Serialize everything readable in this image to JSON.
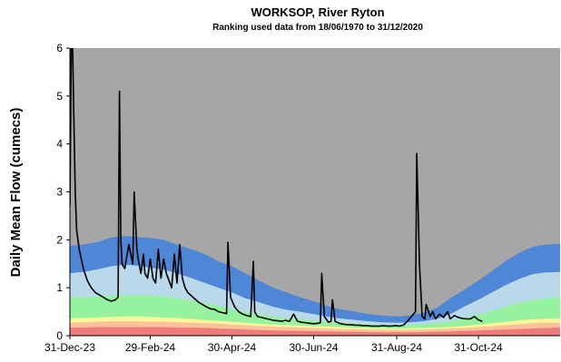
{
  "chart_data": {
    "type": "area",
    "title": "WORKSOP, River Ryton",
    "subtitle": "Ranking used data from 18/06/1970 to 31/12/2020",
    "ylabel": "Daily Mean Flow (cumecs)",
    "xlabel": "",
    "ylim": [
      0,
      6
    ],
    "xlim": [
      "2023-12-31",
      "2024-12-31"
    ],
    "x_ticks": [
      "31-Dec-23",
      "29-Feb-24",
      "30-Apr-24",
      "30-Jun-24",
      "31-Aug-24",
      "31-Oct-24"
    ],
    "y_ticks": [
      "0",
      "1",
      "2",
      "3",
      "4",
      "5",
      "6"
    ],
    "grid": false,
    "colors": {
      "band_top": "#a6a6a6",
      "band_dark_blue": "#4f86d6",
      "band_light_blue": "#b9d9ea",
      "band_green": "#97f29f",
      "band_yellow": "#fdf59a",
      "band_orange": "#f9c29a",
      "band_red": "#ee7a7a",
      "flow_line": "#000000"
    },
    "bands": {
      "x": [
        "2023-12-31",
        "2024-01-10",
        "2024-01-20",
        "2024-01-31",
        "2024-02-10",
        "2024-02-20",
        "2024-02-29",
        "2024-03-10",
        "2024-03-20",
        "2024-03-31",
        "2024-04-10",
        "2024-04-20",
        "2024-04-30",
        "2024-05-10",
        "2024-05-20",
        "2024-05-31",
        "2024-06-10",
        "2024-06-20",
        "2024-06-30",
        "2024-07-10",
        "2024-07-20",
        "2024-07-31",
        "2024-08-10",
        "2024-08-20",
        "2024-08-31",
        "2024-09-10",
        "2024-09-20",
        "2024-09-30",
        "2024-10-10",
        "2024-10-20",
        "2024-10-31",
        "2024-11-10",
        "2024-11-20",
        "2024-11-30",
        "2024-12-10",
        "2024-12-20",
        "2024-12-31"
      ],
      "dark_blue_upper": [
        1.88,
        1.9,
        1.95,
        2.05,
        2.08,
        2.06,
        2.04,
        2.0,
        1.9,
        1.8,
        1.7,
        1.55,
        1.45,
        1.3,
        1.15,
        1.0,
        0.9,
        0.8,
        0.72,
        0.62,
        0.55,
        0.5,
        0.45,
        0.42,
        0.4,
        0.42,
        0.48,
        0.58,
        0.78,
        0.95,
        1.15,
        1.35,
        1.55,
        1.72,
        1.85,
        1.9,
        1.92
      ],
      "light_blue_upper": [
        1.3,
        1.33,
        1.38,
        1.45,
        1.48,
        1.46,
        1.42,
        1.38,
        1.3,
        1.2,
        1.1,
        1.0,
        0.9,
        0.78,
        0.7,
        0.6,
        0.54,
        0.5,
        0.45,
        0.4,
        0.36,
        0.33,
        0.3,
        0.28,
        0.27,
        0.28,
        0.3,
        0.35,
        0.45,
        0.6,
        0.75,
        0.9,
        1.05,
        1.18,
        1.28,
        1.32,
        1.33
      ],
      "green_upper": [
        0.8,
        0.8,
        0.82,
        0.84,
        0.85,
        0.85,
        0.84,
        0.82,
        0.78,
        0.74,
        0.68,
        0.62,
        0.55,
        0.5,
        0.45,
        0.4,
        0.37,
        0.34,
        0.32,
        0.3,
        0.28,
        0.26,
        0.24,
        0.23,
        0.22,
        0.23,
        0.24,
        0.26,
        0.3,
        0.36,
        0.44,
        0.52,
        0.6,
        0.68,
        0.74,
        0.78,
        0.8
      ],
      "yellow_upper": [
        0.36,
        0.37,
        0.38,
        0.39,
        0.4,
        0.4,
        0.39,
        0.38,
        0.37,
        0.35,
        0.33,
        0.31,
        0.29,
        0.27,
        0.25,
        0.23,
        0.22,
        0.21,
        0.2,
        0.19,
        0.18,
        0.17,
        0.16,
        0.155,
        0.15,
        0.155,
        0.16,
        0.17,
        0.18,
        0.2,
        0.23,
        0.26,
        0.29,
        0.32,
        0.34,
        0.35,
        0.36
      ],
      "orange_upper": [
        0.27,
        0.28,
        0.29,
        0.3,
        0.3,
        0.3,
        0.29,
        0.29,
        0.28,
        0.27,
        0.26,
        0.25,
        0.23,
        0.22,
        0.2,
        0.19,
        0.18,
        0.17,
        0.16,
        0.15,
        0.14,
        0.135,
        0.13,
        0.125,
        0.12,
        0.125,
        0.13,
        0.14,
        0.15,
        0.16,
        0.18,
        0.2,
        0.22,
        0.24,
        0.26,
        0.27,
        0.27
      ],
      "red_upper": [
        0.17,
        0.17,
        0.18,
        0.18,
        0.18,
        0.18,
        0.18,
        0.18,
        0.17,
        0.17,
        0.16,
        0.15,
        0.14,
        0.13,
        0.12,
        0.11,
        0.105,
        0.1,
        0.095,
        0.09,
        0.085,
        0.08,
        0.075,
        0.07,
        0.07,
        0.07,
        0.075,
        0.08,
        0.09,
        0.1,
        0.11,
        0.12,
        0.13,
        0.14,
        0.15,
        0.16,
        0.17
      ]
    },
    "series": [
      {
        "x": [
          "2023-12-31",
          "2024-01-01",
          "2024-01-02",
          "2024-01-03",
          "2024-01-04",
          "2024-01-05",
          "2024-01-07",
          "2024-01-10",
          "2024-01-13",
          "2024-01-16",
          "2024-01-19",
          "2024-01-22",
          "2024-01-25",
          "2024-01-28",
          "2024-01-31",
          "2024-02-03",
          "2024-02-05",
          "2024-02-06",
          "2024-02-07",
          "2024-02-08",
          "2024-02-10",
          "2024-02-13",
          "2024-02-16",
          "2024-02-17",
          "2024-02-19",
          "2024-02-20",
          "2024-02-22",
          "2024-02-24",
          "2024-02-25",
          "2024-02-27",
          "2024-02-29",
          "2024-03-02",
          "2024-03-04",
          "2024-03-06",
          "2024-03-08",
          "2024-03-10",
          "2024-03-12",
          "2024-03-14",
          "2024-03-16",
          "2024-03-18",
          "2024-03-20",
          "2024-03-22",
          "2024-03-24",
          "2024-03-26",
          "2024-03-28",
          "2024-03-30",
          "2024-04-01",
          "2024-04-03",
          "2024-04-05",
          "2024-04-08",
          "2024-04-11",
          "2024-04-14",
          "2024-04-17",
          "2024-04-20",
          "2024-04-23",
          "2024-04-26",
          "2024-04-27",
          "2024-04-29",
          "2024-05-02",
          "2024-05-05",
          "2024-05-08",
          "2024-05-11",
          "2024-05-14",
          "2024-05-16",
          "2024-05-17",
          "2024-05-19",
          "2024-05-22",
          "2024-05-25",
          "2024-05-28",
          "2024-05-31",
          "2024-06-03",
          "2024-06-06",
          "2024-06-09",
          "2024-06-12",
          "2024-06-15",
          "2024-06-18",
          "2024-06-21",
          "2024-06-24",
          "2024-06-27",
          "2024-06-30",
          "2024-07-03",
          "2024-07-05",
          "2024-07-06",
          "2024-07-08",
          "2024-07-11",
          "2024-07-13",
          "2024-07-14",
          "2024-07-16",
          "2024-07-19",
          "2024-07-22",
          "2024-07-25",
          "2024-07-28",
          "2024-07-31",
          "2024-08-03",
          "2024-08-06",
          "2024-08-09",
          "2024-08-12",
          "2024-08-15",
          "2024-08-18",
          "2024-08-21",
          "2024-08-24",
          "2024-08-27",
          "2024-08-30",
          "2024-09-02",
          "2024-09-05",
          "2024-09-08",
          "2024-09-11",
          "2024-09-14",
          "2024-09-15",
          "2024-09-17",
          "2024-09-19",
          "2024-09-21",
          "2024-09-22",
          "2024-09-25",
          "2024-09-27",
          "2024-09-29",
          "2024-10-02",
          "2024-10-05",
          "2024-10-08",
          "2024-10-10",
          "2024-10-13",
          "2024-10-16",
          "2024-10-19",
          "2024-10-22",
          "2024-10-25",
          "2024-10-28",
          "2024-10-31",
          "2024-11-03"
        ],
        "values": [
          2.7,
          6.0,
          6.0,
          4.5,
          3.0,
          2.2,
          1.8,
          1.4,
          1.15,
          1.0,
          0.9,
          0.85,
          0.8,
          0.75,
          0.72,
          0.75,
          0.8,
          5.1,
          2.0,
          1.5,
          1.4,
          1.9,
          1.5,
          3.0,
          1.8,
          1.6,
          1.3,
          1.7,
          1.3,
          1.2,
          1.6,
          1.2,
          1.1,
          1.8,
          1.2,
          1.6,
          1.3,
          1.15,
          1.0,
          1.7,
          1.1,
          1.9,
          1.2,
          1.0,
          0.9,
          0.85,
          0.8,
          0.75,
          0.7,
          0.65,
          0.6,
          0.56,
          0.55,
          0.5,
          0.48,
          0.46,
          1.95,
          0.8,
          0.6,
          0.5,
          0.45,
          0.42,
          0.4,
          1.55,
          0.5,
          0.4,
          0.38,
          0.36,
          0.34,
          0.32,
          0.31,
          0.3,
          0.32,
          0.3,
          0.45,
          0.3,
          0.28,
          0.27,
          0.26,
          0.25,
          0.26,
          0.27,
          1.3,
          0.4,
          0.28,
          0.3,
          0.75,
          0.3,
          0.26,
          0.24,
          0.23,
          0.23,
          0.22,
          0.22,
          0.21,
          0.21,
          0.2,
          0.2,
          0.2,
          0.21,
          0.2,
          0.2,
          0.21,
          0.2,
          0.22,
          0.3,
          0.4,
          0.5,
          3.8,
          1.5,
          0.4,
          0.35,
          0.65,
          0.4,
          0.5,
          0.35,
          0.45,
          0.38,
          0.5,
          0.35,
          0.42,
          0.38,
          0.36,
          0.35,
          0.35,
          0.4,
          0.33,
          0.3
        ]
      }
    ]
  }
}
